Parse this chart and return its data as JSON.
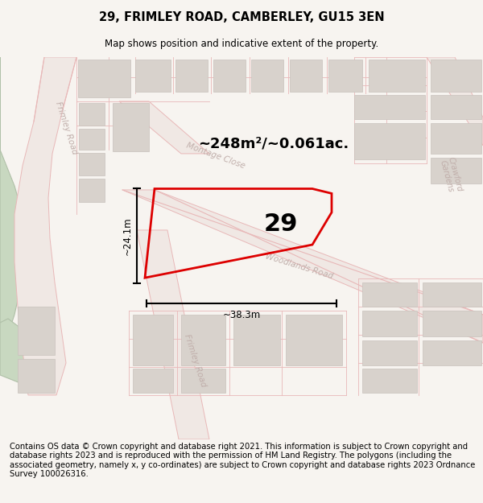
{
  "title": "29, FRIMLEY ROAD, CAMBERLEY, GU15 3EN",
  "subtitle": "Map shows position and indicative extent of the property.",
  "footer": "Contains OS data © Crown copyright and database right 2021. This information is subject to Crown copyright and database rights 2023 and is reproduced with the permission of HM Land Registry. The polygons (including the associated geometry, namely x, y co-ordinates) are subject to Crown copyright and database rights 2023 Ordnance Survey 100026316.",
  "area_label": "~248m²/~0.061ac.",
  "number_label": "29",
  "width_label": "~38.3m",
  "height_label": "~24.1m",
  "bg_color": "#f7f4f0",
  "map_bg": "#ffffff",
  "road_line_color": "#e8b8b8",
  "road_fill_color": "#f0e8e4",
  "block_fill": "#d8d2cc",
  "block_edge": "#c8c2bc",
  "highlight_color": "#dd0000",
  "green_fill": "#c8d8c0",
  "green_edge": "#b0c0a8",
  "road_label_color": "#c0aeaa",
  "title_fontsize": 10.5,
  "subtitle_fontsize": 8.5,
  "footer_fontsize": 7.2,
  "area_fontsize": 13,
  "number_fontsize": 22,
  "dim_fontsize": 8.5,
  "road_fontsize": 7.5
}
